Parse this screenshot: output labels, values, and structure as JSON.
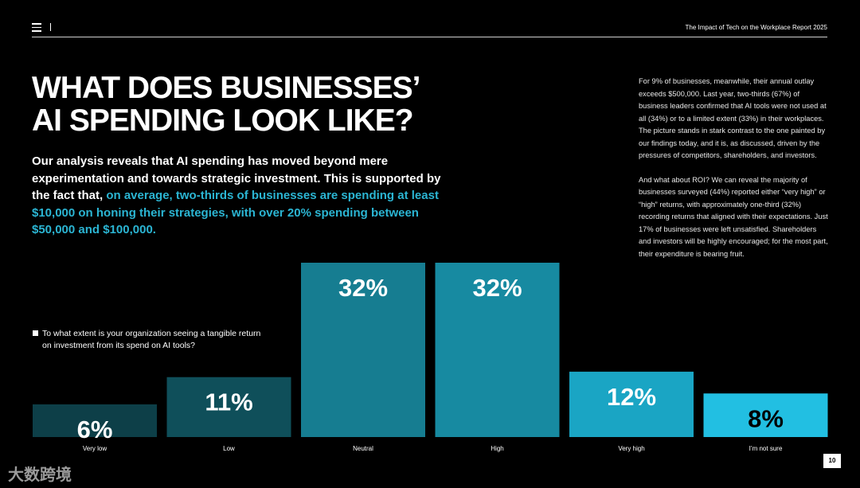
{
  "header": {
    "report_title": "The Impact of Tech on the Workplace Report 2025"
  },
  "headline": {
    "line1": "What does businesses’",
    "line2": "AI spending look like?"
  },
  "lead": {
    "part1": "Our analysis reveals that AI spending has moved beyond mere experimentation and towards strategic investment. This is supported by the fact that, ",
    "highlight": "on average, two-thirds of businesses are spending at least $10,000 on honing their strategies, with over 20% spending between $50,000 and $100,000."
  },
  "sidebar": {
    "para1": "For 9% of businesses, meanwhile, their annual outlay exceeds $500,000. Last year, two-thirds (67%) of business leaders confirmed that AI tools were not used at all (34%) or to a limited extent (33%) in their workplaces. The picture stands in stark contrast to the one painted by our findings today, and it is, as discussed, driven by the pressures of competitors, shareholders, and investors.",
    "para2": "And what about ROI? We can reveal the majority of businesses surveyed (44%) reported either “very high” or “high” returns, with approximately one-third (32%) recording returns that aligned with their expectations. Just 17% of businesses were left unsatisfied. Shareholders and investors will be highly encouraged; for the most part, their expenditure is bearing fruit."
  },
  "question": {
    "text": "To what extent is your organization seeing a tangible return on investment from its spend on AI tools?"
  },
  "chart_data": {
    "type": "bar",
    "categories": [
      "Very low",
      "Low",
      "Neutral",
      "High",
      "Very high",
      "I’m not sure"
    ],
    "values": [
      6,
      11,
      32,
      32,
      12,
      8
    ],
    "data_labels": [
      "6%",
      "11%",
      "32%",
      "32%",
      "12%",
      "8%"
    ],
    "unit": "%",
    "colors": [
      "#0d3f48",
      "#0f4f5a",
      "#167d91",
      "#178aa1",
      "#1aa5c4",
      "#22bfe2"
    ],
    "label_colors": [
      "#ffffff",
      "#ffffff",
      "#ffffff",
      "#ffffff",
      "#ffffff",
      "#000000"
    ],
    "ylim": [
      0,
      32
    ],
    "grid": false
  },
  "footer": {
    "watermark": "大数跨境",
    "page_number": "10"
  }
}
